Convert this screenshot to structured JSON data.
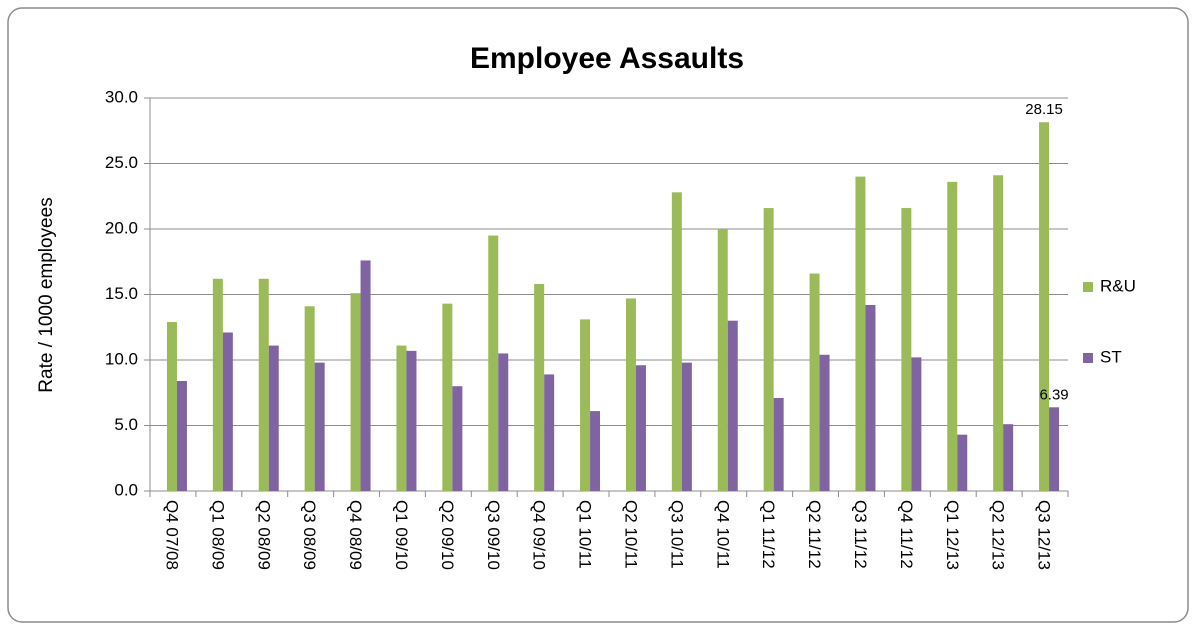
{
  "chart_data": {
    "type": "bar",
    "title": "Employee Assaults",
    "y_label": "Rate / 1000 employees",
    "categories": [
      "Q4 07/08",
      "Q1 08/09",
      "Q2 08/09",
      "Q3 08/09",
      "Q4 08/09",
      "Q1 09/10",
      "Q2 09/10",
      "Q3 09/10",
      "Q4 09/10",
      "Q1 10/11",
      "Q2 10/11",
      "Q3 10/11",
      "Q4 10/11",
      "Q1 11/12",
      "Q2 11/12",
      "Q3 11/12",
      "Q4 11/12",
      "Q1 12/13",
      "Q2 12/13",
      "Q3 12/13"
    ],
    "series": [
      {
        "name": "R&U",
        "color": "#9bbb59",
        "values": [
          12.9,
          16.2,
          16.2,
          14.1,
          15.1,
          11.1,
          14.3,
          19.5,
          15.8,
          13.1,
          14.7,
          22.8,
          20.0,
          21.6,
          16.6,
          24.0,
          21.6,
          23.6,
          24.1,
          28.15
        ],
        "value_labels": [
          null,
          null,
          null,
          null,
          null,
          null,
          null,
          null,
          null,
          null,
          null,
          null,
          null,
          null,
          null,
          null,
          null,
          null,
          null,
          "28.15"
        ]
      },
      {
        "name": "ST",
        "color": "#8064a2",
        "values": [
          8.4,
          12.1,
          11.1,
          9.8,
          17.6,
          10.7,
          8.0,
          10.5,
          8.9,
          6.1,
          9.6,
          9.8,
          13.0,
          7.1,
          10.4,
          14.2,
          10.2,
          4.3,
          5.1,
          6.39
        ],
        "value_labels": [
          null,
          null,
          null,
          null,
          null,
          null,
          null,
          null,
          null,
          null,
          null,
          null,
          null,
          null,
          null,
          null,
          null,
          null,
          null,
          "6.39"
        ]
      }
    ],
    "ylim": [
      0,
      30
    ],
    "yticks": [
      {
        "value": 0,
        "label": "0.0"
      },
      {
        "value": 5,
        "label": "5.0"
      },
      {
        "value": 10,
        "label": "10.0"
      },
      {
        "value": 15,
        "label": "15.0"
      },
      {
        "value": 20,
        "label": "20.0"
      },
      {
        "value": 25,
        "label": "25.0"
      },
      {
        "value": 30,
        "label": "30.0"
      }
    ],
    "grid": true,
    "legend": "right"
  }
}
